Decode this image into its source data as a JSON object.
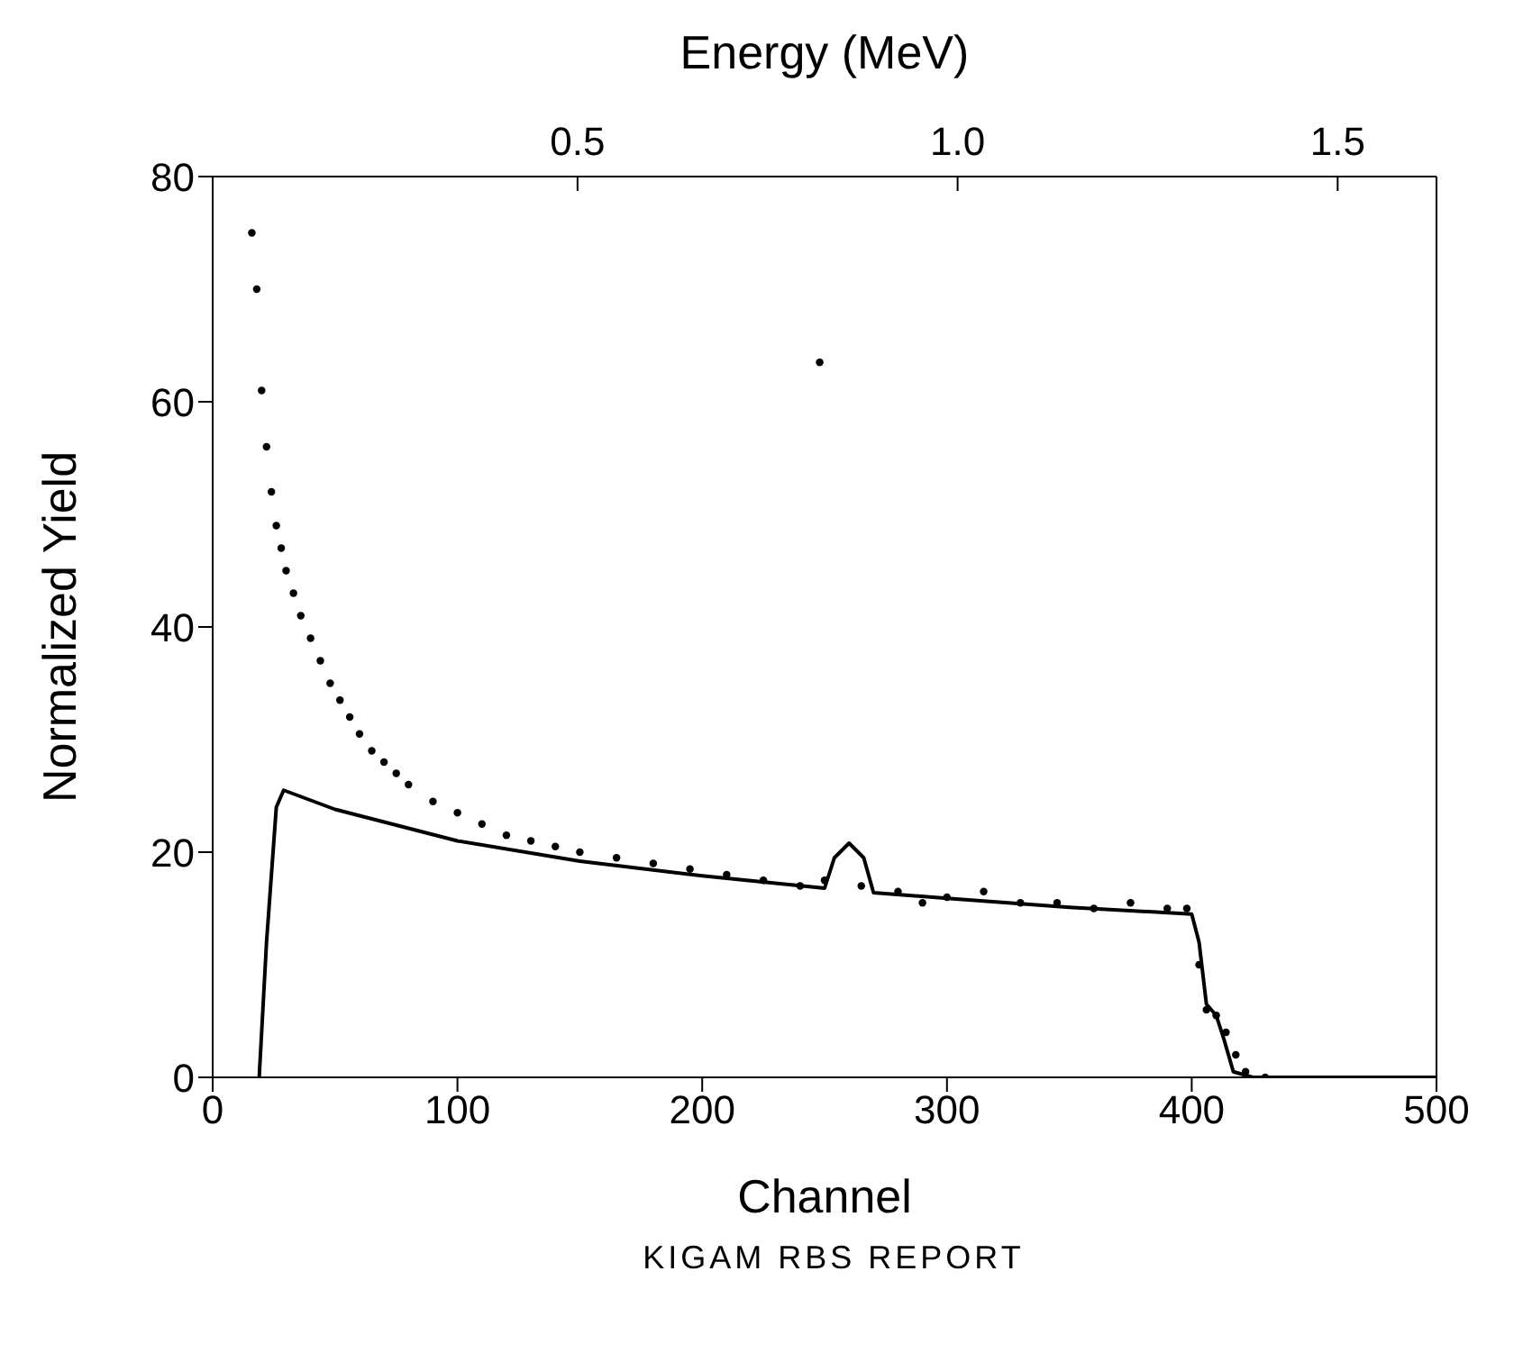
{
  "chart_data": {
    "type": "scatter",
    "xlabel": "Channel",
    "ylabel": "Normalized Yield",
    "x2label": "Energy (MeV)",
    "xlim": [
      0,
      500
    ],
    "xticks": [
      0,
      100,
      200,
      300,
      400,
      500
    ],
    "ylim": [
      0,
      80
    ],
    "yticks": [
      0,
      20,
      40,
      60,
      80
    ],
    "x2lim": [
      0.02,
      1.63
    ],
    "x2ticks": [
      0.5,
      {
        "value": 1.0,
        "label": "1.0"
      },
      1.5
    ],
    "legend": false,
    "marker": "circle",
    "annotations": [
      "KIGAM RBS REPORT"
    ],
    "series": [
      {
        "color": "#000000",
        "x": [
          16,
          18,
          20,
          22,
          24,
          26,
          28,
          30,
          33,
          36,
          40,
          44,
          48,
          52,
          56,
          60,
          65,
          70,
          75,
          80,
          90,
          100,
          110,
          120,
          130,
          140,
          150,
          165,
          180,
          195,
          210,
          225,
          240,
          250,
          265,
          280,
          290,
          300,
          315,
          330,
          345,
          360,
          375,
          390,
          398,
          403,
          406,
          410,
          414,
          418,
          422,
          430,
          248
        ],
        "values": [
          75,
          70,
          61,
          56,
          52,
          49,
          47,
          45,
          43,
          41,
          39,
          37,
          35,
          33.5,
          32,
          30.5,
          29,
          28,
          27,
          26,
          24.5,
          23.5,
          22.5,
          21.5,
          21,
          20.5,
          20,
          19.5,
          19,
          18.5,
          18,
          17.5,
          17,
          17.5,
          17,
          16.5,
          15.5,
          16,
          16.5,
          15.5,
          15.5,
          15,
          15.5,
          15,
          15,
          10,
          6,
          5.5,
          4,
          2,
          0.5,
          0,
          63.5
        ]
      },
      {
        "type": "line",
        "color": "#000000",
        "marker": "none",
        "x": [
          19,
          22,
          26,
          29,
          50,
          100,
          150,
          200,
          250,
          254,
          260,
          266,
          270,
          300,
          350,
          400,
          403,
          406,
          410,
          413,
          417,
          425,
          500
        ],
        "values": [
          0,
          12,
          24,
          25.5,
          23.8,
          21,
          19.2,
          17.9,
          16.8,
          19.5,
          20.8,
          19.5,
          16.4,
          15.9,
          15.1,
          14.5,
          12,
          6.5,
          5.5,
          3.5,
          0.5,
          0,
          0
        ]
      }
    ]
  }
}
